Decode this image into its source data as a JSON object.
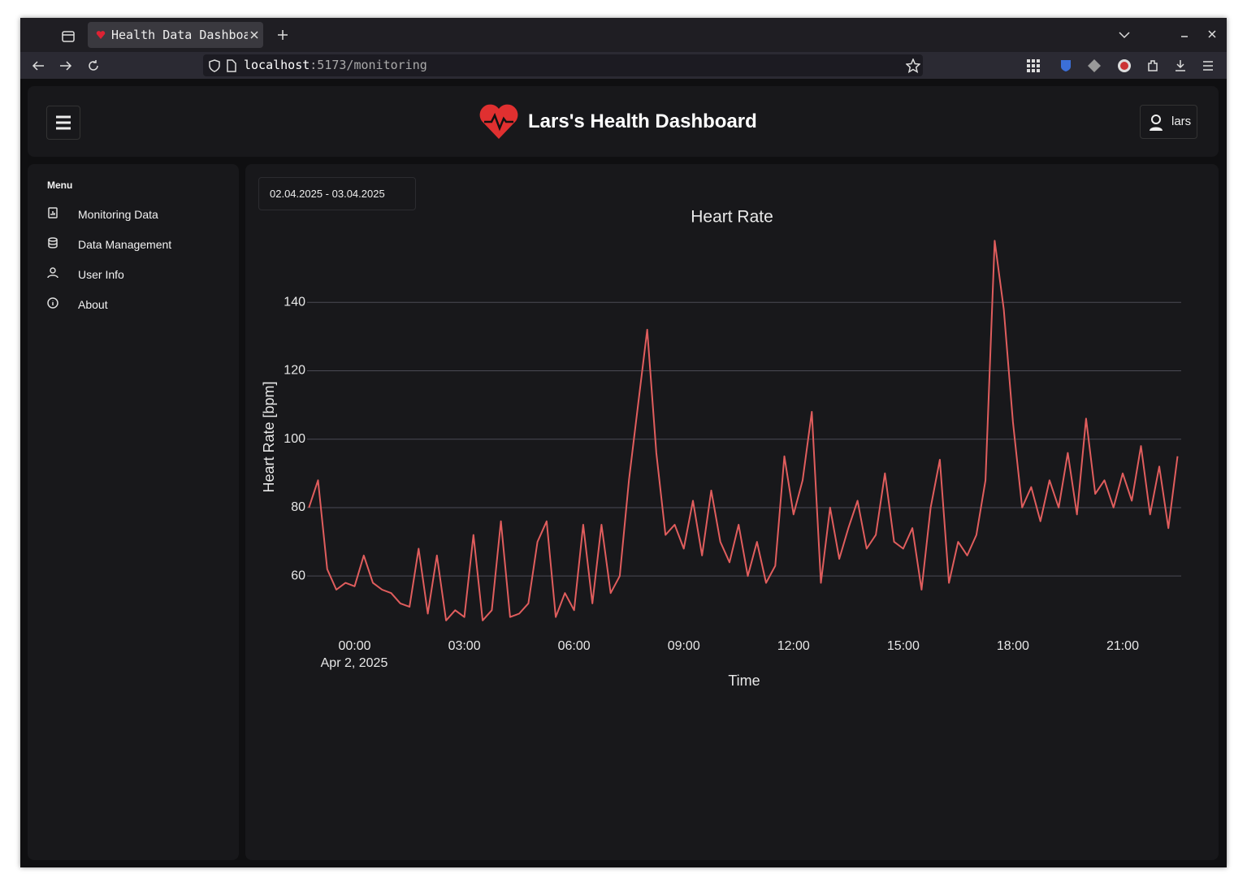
{
  "browser": {
    "tab_title": "Health Data Dashboard",
    "url_host": "localhost",
    "url_path": ":5173/monitoring"
  },
  "header": {
    "title": "Lars's Health Dashboard",
    "user": "lars"
  },
  "sidebar": {
    "heading": "Menu",
    "items": [
      "Monitoring Data",
      "Data Management",
      "User Info",
      "About"
    ]
  },
  "date_range": "02.04.2025 - 03.04.2025",
  "chart_data": {
    "type": "line",
    "title": "Heart Rate",
    "y_label": "Heart Rate [bpm]",
    "x_label": "Time",
    "x_date_label": "Apr 2, 2025",
    "color": "#e05d5d",
    "grid": true,
    "xlim": [
      -1.3,
      22.6
    ],
    "xticks": [
      {
        "value": 0,
        "label": "00:00"
      },
      {
        "value": 3,
        "label": "03:00"
      },
      {
        "value": 6,
        "label": "06:00"
      },
      {
        "value": 9,
        "label": "09:00"
      },
      {
        "value": 12,
        "label": "12:00"
      },
      {
        "value": 15,
        "label": "15:00"
      },
      {
        "value": 18,
        "label": "18:00"
      },
      {
        "value": 21,
        "label": "21:00"
      }
    ],
    "ylim": [
      42,
      160
    ],
    "yticks": [
      60,
      80,
      100,
      120,
      140
    ],
    "x": [
      -1.25,
      -1,
      -0.75,
      -0.5,
      -0.25,
      0,
      0.25,
      0.5,
      0.75,
      1,
      1.25,
      1.5,
      1.75,
      2,
      2.25,
      2.5,
      2.75,
      3,
      3.25,
      3.5,
      3.75,
      4,
      4.25,
      4.5,
      4.75,
      5,
      5.25,
      5.5,
      5.75,
      6,
      6.25,
      6.5,
      6.75,
      7,
      7.25,
      7.5,
      7.75,
      8,
      8.25,
      8.5,
      8.75,
      9,
      9.25,
      9.5,
      9.75,
      10,
      10.25,
      10.5,
      10.75,
      11,
      11.25,
      11.5,
      11.75,
      12,
      12.25,
      12.5,
      12.75,
      13,
      13.25,
      13.5,
      13.75,
      14,
      14.25,
      14.5,
      14.75,
      15,
      15.25,
      15.5,
      15.75,
      16,
      16.25,
      16.5,
      16.75,
      17,
      17.25,
      17.5,
      17.75,
      18,
      18.25,
      18.5,
      18.75,
      19,
      19.25,
      19.5,
      19.75,
      20,
      20.25,
      20.5,
      20.75,
      21,
      21.25,
      21.5,
      21.75,
      22,
      22.25,
      22.5
    ],
    "values": [
      80,
      88,
      62,
      56,
      58,
      57,
      66,
      58,
      56,
      55,
      52,
      51,
      68,
      49,
      66,
      47,
      50,
      48,
      72,
      47,
      50,
      76,
      48,
      49,
      52,
      70,
      76,
      48,
      55,
      50,
      75,
      52,
      75,
      55,
      60,
      88,
      110,
      132,
      96,
      72,
      75,
      68,
      82,
      66,
      85,
      70,
      64,
      75,
      60,
      70,
      58,
      63,
      95,
      78,
      88,
      108,
      58,
      80,
      65,
      74,
      82,
      68,
      72,
      90,
      70,
      68,
      74,
      56,
      80,
      94,
      58,
      70,
      66,
      72,
      88,
      158,
      138,
      105,
      80,
      86,
      76,
      88,
      80,
      96,
      78,
      106,
      84,
      88,
      80,
      90,
      82,
      98,
      78,
      92,
      74,
      95
    ]
  }
}
